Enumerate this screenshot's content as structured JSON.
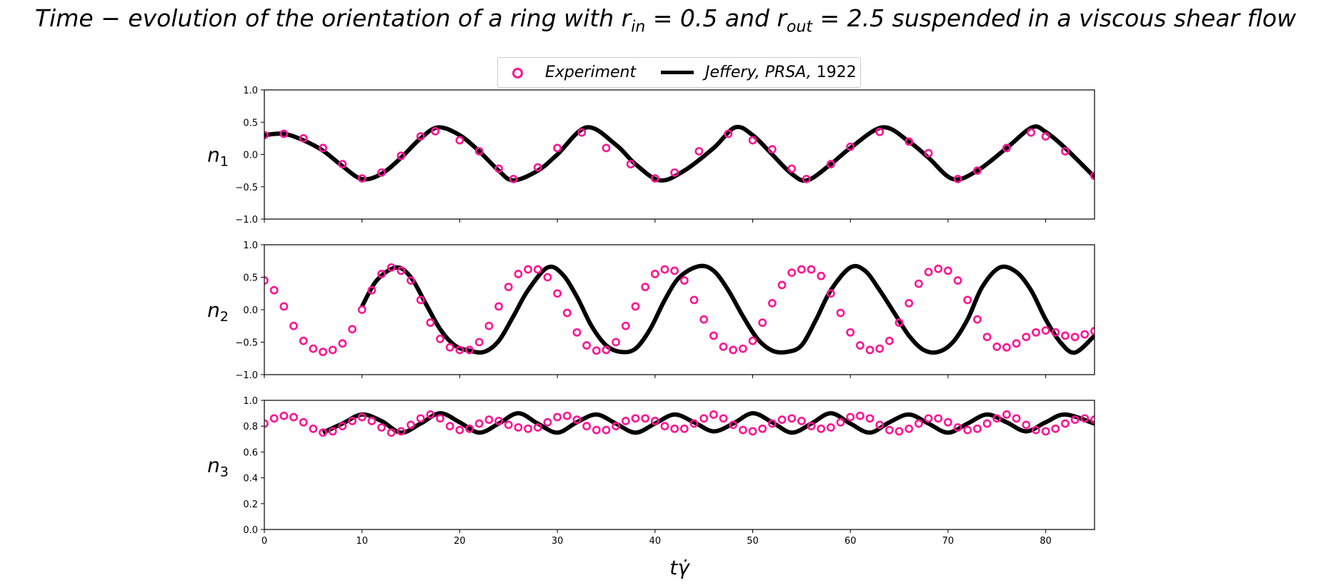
{
  "title": {
    "prefix": "Time − evolution of the orientation of a ring with r",
    "sub_in": "in",
    "mid1": " = 0.5 and r",
    "sub_out": "out",
    "suffix": " = 2.5 suspended in a viscous shear flow"
  },
  "legend": {
    "experiment": "Experiment",
    "jeffery_italic": "Jeffery, PRSA,",
    "jeffery_year": " 1922"
  },
  "colors": {
    "experiment": "#ff1493",
    "jeffery": "#000000"
  },
  "chart_data": [
    {
      "type": "line",
      "ylabel": "n",
      "ylabel_sub": "1",
      "xlim": [
        0,
        85
      ],
      "ylim": [
        -1.0,
        1.0
      ],
      "yticks": [
        "−1.0",
        "−0.5",
        "0.0",
        "0.5",
        "1.0"
      ],
      "ytick_values": [
        -1.0,
        -0.5,
        0.0,
        0.5,
        1.0
      ],
      "grid": false,
      "series": [
        {
          "name": "Jeffery, PRSA, 1922",
          "style": "line",
          "x": [
            0,
            2,
            4,
            6,
            8,
            10,
            12,
            14,
            16,
            17.8,
            20,
            22,
            24,
            25.5,
            28,
            30,
            33,
            36,
            38,
            40.5,
            43,
            46,
            48.2,
            50,
            52,
            54,
            55.6,
            58,
            60,
            63.3,
            66,
            68,
            70.5,
            73,
            76,
            78.6,
            80,
            82,
            85
          ],
          "y": [
            0.3,
            0.32,
            0.22,
            0.06,
            -0.18,
            -0.38,
            -0.3,
            -0.05,
            0.25,
            0.42,
            0.3,
            0.05,
            -0.25,
            -0.4,
            -0.25,
            0.0,
            0.42,
            0.15,
            -0.15,
            -0.4,
            -0.25,
            0.1,
            0.42,
            0.3,
            0.0,
            -0.3,
            -0.4,
            -0.15,
            0.1,
            0.42,
            0.2,
            -0.05,
            -0.38,
            -0.25,
            0.1,
            0.42,
            0.35,
            0.1,
            -0.35
          ]
        },
        {
          "name": "Experiment",
          "style": "markers",
          "x": [
            0,
            2,
            4,
            6,
            8,
            10,
            12,
            14,
            16,
            17.5,
            20,
            22,
            24,
            25.5,
            28,
            30,
            32.5,
            35,
            37.5,
            40,
            42,
            44.5,
            47.5,
            50,
            52,
            54,
            55.5,
            58,
            60,
            63,
            66,
            68,
            71,
            73,
            76,
            78.5,
            80,
            82,
            85
          ],
          "y": [
            0.3,
            0.32,
            0.25,
            0.1,
            -0.15,
            -0.37,
            -0.28,
            -0.02,
            0.28,
            0.36,
            0.22,
            0.05,
            -0.22,
            -0.38,
            -0.2,
            0.1,
            0.34,
            0.1,
            -0.15,
            -0.37,
            -0.28,
            0.05,
            0.32,
            0.22,
            0.08,
            -0.22,
            -0.38,
            -0.15,
            0.12,
            0.35,
            0.2,
            0.02,
            -0.38,
            -0.25,
            0.1,
            0.34,
            0.28,
            0.05,
            -0.33
          ]
        }
      ]
    },
    {
      "type": "line",
      "ylabel": "n",
      "ylabel_sub": "2",
      "xlim": [
        0,
        85
      ],
      "ylim": [
        -1.0,
        1.0
      ],
      "yticks": [
        "−1.0",
        "−0.5",
        "0.0",
        "0.5",
        "1.0"
      ],
      "ytick_values": [
        -1.0,
        -0.5,
        0.0,
        0.5,
        1.0
      ],
      "grid": false,
      "series": [
        {
          "name": "Jeffery, PRSA, 1922",
          "style": "line",
          "x": [
            10,
            11.5,
            13.5,
            15,
            16.5,
            18,
            19.5,
            21,
            22.5,
            24,
            25.5,
            27,
            29,
            30.5,
            32,
            33.5,
            35,
            36.5,
            38,
            39.5,
            41,
            42.5,
            44.5,
            46,
            47.5,
            49,
            50.5,
            52,
            53.5,
            55,
            56.5,
            58,
            60,
            61.5,
            63,
            64.5,
            66,
            67.5,
            69,
            70.5,
            72,
            73.5,
            75.3,
            77,
            78.5,
            80,
            81.5,
            83,
            85
          ],
          "y": [
            0.05,
            0.45,
            0.65,
            0.5,
            0.1,
            -0.3,
            -0.55,
            -0.63,
            -0.65,
            -0.48,
            -0.1,
            0.3,
            0.65,
            0.55,
            0.2,
            -0.25,
            -0.55,
            -0.65,
            -0.6,
            -0.3,
            0.15,
            0.5,
            0.67,
            0.6,
            0.3,
            -0.1,
            -0.45,
            -0.63,
            -0.65,
            -0.55,
            -0.15,
            0.3,
            0.65,
            0.6,
            0.3,
            -0.05,
            -0.4,
            -0.62,
            -0.65,
            -0.5,
            -0.15,
            0.35,
            0.65,
            0.58,
            0.3,
            -0.15,
            -0.5,
            -0.66,
            -0.4
          ]
        },
        {
          "name": "Experiment",
          "style": "markers",
          "x": [
            0,
            1,
            2,
            3,
            4,
            5,
            6,
            7,
            8,
            9,
            10,
            11,
            12,
            13,
            14,
            15,
            16,
            17,
            18,
            19,
            20,
            21,
            22,
            23,
            24,
            25,
            26,
            27,
            28,
            29,
            30,
            31,
            32,
            33,
            34,
            35,
            36,
            37,
            38,
            39,
            40,
            41,
            42,
            43,
            44,
            45,
            46,
            47,
            48,
            49,
            50,
            51,
            52,
            53,
            54,
            55,
            56,
            57,
            58,
            59,
            60,
            61,
            62,
            63,
            64,
            65,
            66,
            67,
            68,
            69,
            70,
            71,
            72,
            73,
            74,
            75,
            76,
            77,
            78,
            79,
            80,
            81,
            82,
            83,
            84,
            85
          ],
          "y": [
            0.45,
            0.3,
            0.05,
            -0.25,
            -0.48,
            -0.6,
            -0.65,
            -0.62,
            -0.52,
            -0.3,
            0.0,
            0.3,
            0.55,
            0.65,
            0.6,
            0.45,
            0.15,
            -0.2,
            -0.45,
            -0.58,
            -0.62,
            -0.62,
            -0.5,
            -0.25,
            0.05,
            0.35,
            0.55,
            0.62,
            0.62,
            0.5,
            0.25,
            -0.05,
            -0.35,
            -0.55,
            -0.63,
            -0.62,
            -0.5,
            -0.25,
            0.05,
            0.35,
            0.55,
            0.62,
            0.6,
            0.45,
            0.15,
            -0.15,
            -0.4,
            -0.57,
            -0.62,
            -0.6,
            -0.48,
            -0.2,
            0.1,
            0.38,
            0.57,
            0.62,
            0.62,
            0.52,
            0.25,
            -0.05,
            -0.35,
            -0.55,
            -0.62,
            -0.6,
            -0.48,
            -0.2,
            0.1,
            0.4,
            0.58,
            0.63,
            0.6,
            0.45,
            0.15,
            -0.15,
            -0.42,
            -0.57,
            -0.58,
            -0.52,
            -0.42,
            -0.35,
            -0.32,
            -0.35,
            -0.4,
            -0.42,
            -0.38,
            -0.33
          ]
        }
      ]
    },
    {
      "type": "line",
      "ylabel": "n",
      "ylabel_sub": "3",
      "xlabel": "tγ̇",
      "xlim": [
        0,
        85
      ],
      "ylim": [
        0.0,
        1.0
      ],
      "yticks": [
        "0.0",
        "0.2",
        "0.4",
        "0.6",
        "0.8",
        "1.0"
      ],
      "ytick_values": [
        0.0,
        0.2,
        0.4,
        0.6,
        0.8,
        1.0
      ],
      "xticks": [
        "0",
        "10",
        "20",
        "30",
        "40",
        "50",
        "60",
        "70",
        "80"
      ],
      "xtick_values": [
        0,
        10,
        20,
        30,
        40,
        50,
        60,
        70,
        80
      ],
      "grid": false,
      "series": [
        {
          "name": "Jeffery, PRSA, 1922",
          "style": "line",
          "x": [
            6,
            8,
            10,
            12,
            14,
            16,
            18,
            20,
            22,
            24,
            26,
            28,
            30,
            32,
            34,
            36,
            38,
            40,
            42,
            44,
            46,
            48,
            50,
            52,
            54,
            56,
            58,
            60,
            62,
            64,
            66,
            68,
            70,
            72,
            74,
            76,
            78,
            80,
            82,
            85
          ],
          "y": [
            0.75,
            0.82,
            0.89,
            0.84,
            0.75,
            0.82,
            0.9,
            0.83,
            0.75,
            0.82,
            0.9,
            0.82,
            0.75,
            0.83,
            0.89,
            0.82,
            0.75,
            0.82,
            0.89,
            0.83,
            0.76,
            0.82,
            0.9,
            0.83,
            0.75,
            0.82,
            0.9,
            0.82,
            0.75,
            0.83,
            0.89,
            0.82,
            0.75,
            0.82,
            0.89,
            0.83,
            0.76,
            0.83,
            0.89,
            0.82
          ]
        },
        {
          "name": "Experiment",
          "style": "markers",
          "x": [
            0,
            1,
            2,
            3,
            4,
            5,
            6,
            7,
            8,
            9,
            10,
            11,
            12,
            13,
            14,
            15,
            16,
            17,
            18,
            19,
            20,
            21,
            22,
            23,
            24,
            25,
            26,
            27,
            28,
            29,
            30,
            31,
            32,
            33,
            34,
            35,
            36,
            37,
            38,
            39,
            40,
            41,
            42,
            43,
            44,
            45,
            46,
            47,
            48,
            49,
            50,
            51,
            52,
            53,
            54,
            55,
            56,
            57,
            58,
            59,
            60,
            61,
            62,
            63,
            64,
            65,
            66,
            67,
            68,
            69,
            70,
            71,
            72,
            73,
            74,
            75,
            76,
            77,
            78,
            79,
            80,
            81,
            82,
            83,
            84,
            85
          ],
          "y": [
            0.82,
            0.86,
            0.88,
            0.87,
            0.83,
            0.78,
            0.75,
            0.76,
            0.8,
            0.84,
            0.87,
            0.84,
            0.79,
            0.75,
            0.76,
            0.81,
            0.86,
            0.89,
            0.86,
            0.8,
            0.77,
            0.78,
            0.82,
            0.85,
            0.84,
            0.81,
            0.79,
            0.78,
            0.79,
            0.83,
            0.87,
            0.88,
            0.85,
            0.8,
            0.77,
            0.77,
            0.8,
            0.84,
            0.86,
            0.86,
            0.84,
            0.8,
            0.78,
            0.78,
            0.82,
            0.86,
            0.89,
            0.86,
            0.81,
            0.77,
            0.76,
            0.78,
            0.82,
            0.85,
            0.86,
            0.84,
            0.8,
            0.78,
            0.79,
            0.83,
            0.87,
            0.88,
            0.86,
            0.81,
            0.77,
            0.76,
            0.78,
            0.82,
            0.86,
            0.86,
            0.83,
            0.79,
            0.77,
            0.78,
            0.82,
            0.86,
            0.89,
            0.86,
            0.81,
            0.77,
            0.76,
            0.78,
            0.82,
            0.85,
            0.86,
            0.85
          ]
        }
      ]
    }
  ]
}
